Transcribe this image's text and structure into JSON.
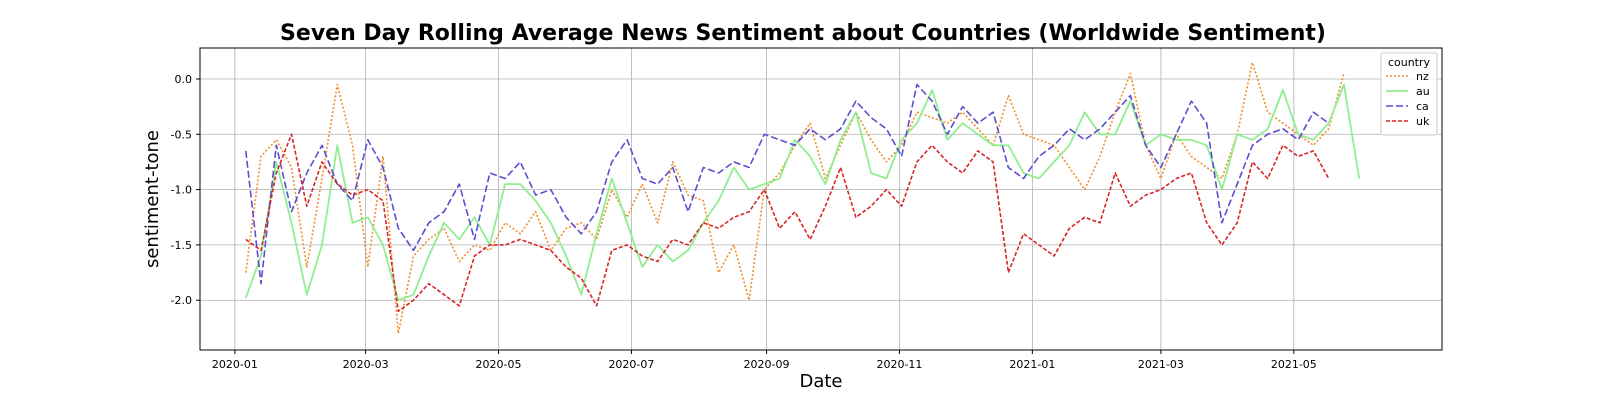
{
  "chart_data": {
    "type": "line",
    "title": "Seven Day Rolling Average News Sentiment about Countries (Worldwide Sentiment)",
    "xlabel": "Date",
    "ylabel": "sentiment-tone",
    "x_ticks": [
      "2020-01",
      "2020-03",
      "2020-05",
      "2020-07",
      "2020-09",
      "2020-11",
      "2021-01",
      "2021-03",
      "2021-05"
    ],
    "y_ticks": [
      "0.0",
      "-0.5",
      "-1.0",
      "-1.5",
      "-2.0"
    ],
    "x_range": [
      "2019-12-16",
      "2021-07-08"
    ],
    "ylim": [
      -2.45,
      0.28
    ],
    "grid": true,
    "legend": {
      "title": "country",
      "placement": "top-right"
    },
    "x_dates": [
      "2020-01-06",
      "2020-01-13",
      "2020-01-20",
      "2020-01-27",
      "2020-02-03",
      "2020-02-10",
      "2020-02-17",
      "2020-02-24",
      "2020-03-02",
      "2020-03-09",
      "2020-03-16",
      "2020-03-23",
      "2020-03-30",
      "2020-04-06",
      "2020-04-13",
      "2020-04-20",
      "2020-04-27",
      "2020-05-04",
      "2020-05-11",
      "2020-05-18",
      "2020-05-25",
      "2020-06-01",
      "2020-06-08",
      "2020-06-15",
      "2020-06-22",
      "2020-06-29",
      "2020-07-06",
      "2020-07-13",
      "2020-07-20",
      "2020-07-27",
      "2020-08-03",
      "2020-08-10",
      "2020-08-17",
      "2020-08-24",
      "2020-08-31",
      "2020-09-07",
      "2020-09-14",
      "2020-09-21",
      "2020-09-28",
      "2020-10-05",
      "2020-10-12",
      "2020-10-19",
      "2020-10-26",
      "2020-11-02",
      "2020-11-09",
      "2020-11-16",
      "2020-11-23",
      "2020-11-30",
      "2020-12-07",
      "2020-12-14",
      "2020-12-21",
      "2020-12-28",
      "2021-01-04",
      "2021-01-11",
      "2021-01-18",
      "2021-01-25",
      "2021-02-01",
      "2021-02-08",
      "2021-02-15",
      "2021-02-22",
      "2021-03-01",
      "2021-03-08",
      "2021-03-15",
      "2021-03-22",
      "2021-03-29",
      "2021-04-05",
      "2021-04-12",
      "2021-04-19",
      "2021-04-26",
      "2021-05-03",
      "2021-05-10",
      "2021-05-17",
      "2021-05-24",
      "2021-05-31"
    ],
    "series": [
      {
        "name": "nz",
        "color": "#f28e2b",
        "dash": "2,2",
        "width": 1.6,
        "values": [
          -1.75,
          -0.7,
          -0.55,
          -0.8,
          -1.7,
          -0.9,
          -0.05,
          -0.6,
          -1.7,
          -0.7,
          -2.3,
          -1.6,
          -1.45,
          -1.35,
          -1.65,
          -1.5,
          -1.55,
          -1.3,
          -1.4,
          -1.2,
          -1.55,
          -1.35,
          -1.3,
          -1.45,
          -1.0,
          -1.25,
          -0.95,
          -1.3,
          -0.75,
          -1.05,
          -1.1,
          -1.75,
          -1.5,
          -2.0,
          -1.0,
          -0.85,
          -0.6,
          -0.4,
          -0.9,
          -0.6,
          -0.3,
          -0.55,
          -0.75,
          -0.6,
          -0.3,
          -0.35,
          -0.4,
          -0.3,
          -0.45,
          -0.6,
          -0.15,
          -0.5,
          -0.55,
          -0.6,
          -0.8,
          -1.0,
          -0.7,
          -0.3,
          0.05,
          -0.6,
          -0.9,
          -0.5,
          -0.7,
          -0.8,
          -0.9,
          -0.5,
          0.15,
          -0.3,
          -0.4,
          -0.5,
          -0.6,
          -0.45,
          0.05,
          null
        ]
      },
      {
        "name": "au",
        "color": "#90ee90",
        "dash": "",
        "width": 1.8,
        "values": [
          -1.98,
          -1.6,
          -0.75,
          -1.3,
          -1.95,
          -1.5,
          -0.6,
          -1.3,
          -1.25,
          -1.5,
          -2.0,
          -1.95,
          -1.6,
          -1.3,
          -1.45,
          -1.25,
          -1.5,
          -0.95,
          -0.95,
          -1.1,
          -1.3,
          -1.6,
          -1.95,
          -1.4,
          -0.9,
          -1.3,
          -1.7,
          -1.5,
          -1.65,
          -1.55,
          -1.3,
          -1.1,
          -0.8,
          -1.0,
          -0.95,
          -0.9,
          -0.55,
          -0.7,
          -0.95,
          -0.55,
          -0.3,
          -0.85,
          -0.9,
          -0.55,
          -0.4,
          -0.1,
          -0.55,
          -0.4,
          -0.5,
          -0.6,
          -0.6,
          -0.85,
          -0.9,
          -0.75,
          -0.6,
          -0.3,
          -0.5,
          -0.5,
          -0.2,
          -0.6,
          -0.5,
          -0.55,
          -0.55,
          -0.6,
          -1.0,
          -0.5,
          -0.55,
          -0.45,
          -0.1,
          -0.5,
          -0.55,
          -0.4,
          -0.05,
          -0.9
        ]
      },
      {
        "name": "ca",
        "color": "#5a4fcf",
        "dash": "7,3",
        "width": 1.6,
        "values": [
          -0.65,
          -1.85,
          -0.6,
          -1.2,
          -0.85,
          -0.6,
          -0.95,
          -1.1,
          -0.55,
          -0.8,
          -1.35,
          -1.55,
          -1.3,
          -1.2,
          -0.95,
          -1.45,
          -0.85,
          -0.9,
          -0.75,
          -1.05,
          -1.0,
          -1.25,
          -1.4,
          -1.2,
          -0.75,
          -0.55,
          -0.9,
          -0.95,
          -0.8,
          -1.2,
          -0.8,
          -0.85,
          -0.75,
          -0.8,
          -0.5,
          -0.55,
          -0.6,
          -0.45,
          -0.55,
          -0.45,
          -0.2,
          -0.35,
          -0.45,
          -0.7,
          -0.05,
          -0.2,
          -0.5,
          -0.25,
          -0.4,
          -0.3,
          -0.8,
          -0.9,
          -0.7,
          -0.6,
          -0.45,
          -0.55,
          -0.45,
          -0.3,
          -0.15,
          -0.6,
          -0.8,
          -0.5,
          -0.2,
          -0.4,
          -1.3,
          -0.95,
          -0.6,
          -0.5,
          -0.45,
          -0.55,
          -0.3,
          -0.4,
          null,
          null
        ]
      },
      {
        "name": "uk",
        "color": "#d62728",
        "dash": "4,2",
        "width": 1.6,
        "values": [
          -1.45,
          -1.55,
          -0.85,
          -0.5,
          -1.15,
          -0.75,
          -0.95,
          -1.05,
          -1.0,
          -1.1,
          -2.1,
          -2.0,
          -1.85,
          -1.95,
          -2.05,
          -1.6,
          -1.5,
          -1.5,
          -1.45,
          -1.5,
          -1.55,
          -1.7,
          -1.8,
          -2.05,
          -1.55,
          -1.5,
          -1.6,
          -1.65,
          -1.45,
          -1.5,
          -1.3,
          -1.35,
          -1.25,
          -1.2,
          -1.0,
          -1.35,
          -1.2,
          -1.45,
          -1.15,
          -0.8,
          -1.25,
          -1.15,
          -1.0,
          -1.15,
          -0.75,
          -0.6,
          -0.75,
          -0.85,
          -0.65,
          -0.75,
          -1.75,
          -1.4,
          -1.5,
          -1.6,
          -1.35,
          -1.25,
          -1.3,
          -0.85,
          -1.15,
          -1.05,
          -1.0,
          -0.9,
          -0.85,
          -1.3,
          -1.5,
          -1.3,
          -0.75,
          -0.9,
          -0.6,
          -0.7,
          -0.65,
          -0.9,
          null,
          null
        ]
      }
    ]
  }
}
